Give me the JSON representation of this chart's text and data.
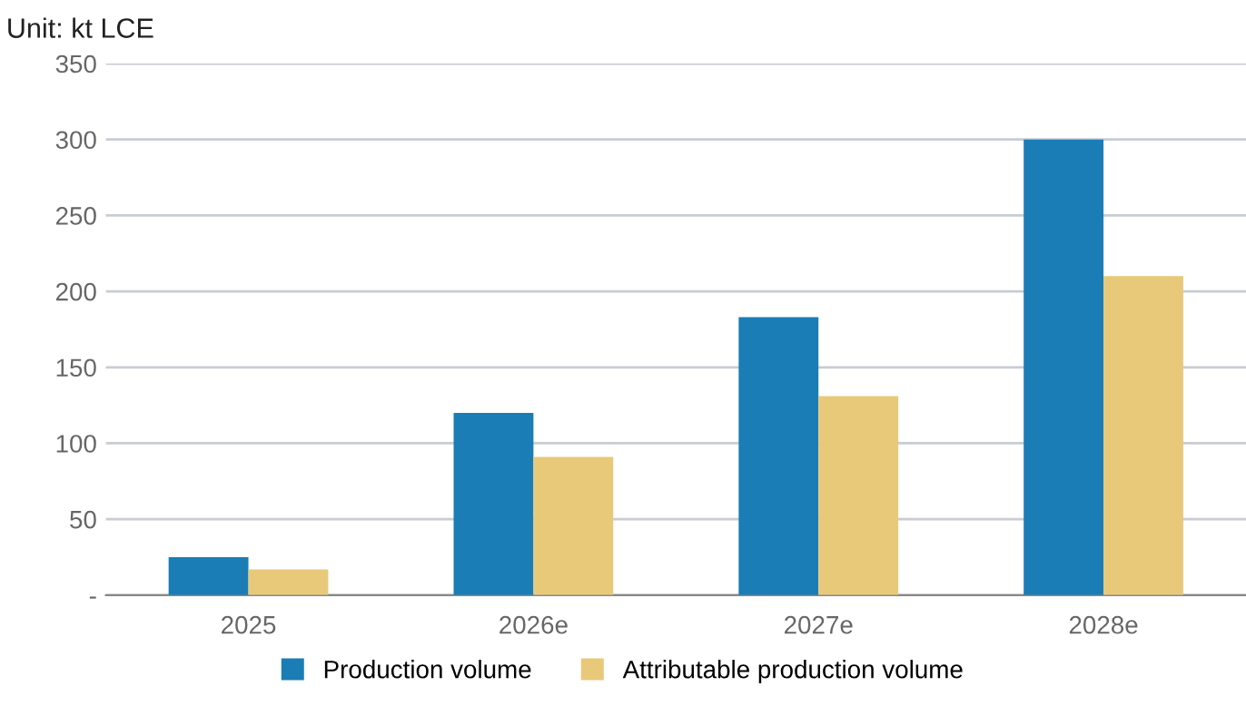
{
  "chart_data": {
    "type": "bar",
    "subtitle": "Unit: kt LCE",
    "categories": [
      "2025",
      "2026e",
      "2027e",
      "2028e"
    ],
    "series": [
      {
        "name": "Production volume",
        "color": "#1a7db5",
        "values": [
          25,
          120,
          183,
          300
        ]
      },
      {
        "name": "Attributable production volume",
        "color": "#e8c97a",
        "values": [
          17,
          91,
          131,
          210
        ]
      }
    ],
    "ylim": [
      0,
      350
    ],
    "yticks": [
      {
        "value": 0,
        "label": "-"
      },
      50,
      100,
      150,
      200,
      250,
      300,
      350
    ],
    "grid": "y",
    "legend": "bottom"
  }
}
